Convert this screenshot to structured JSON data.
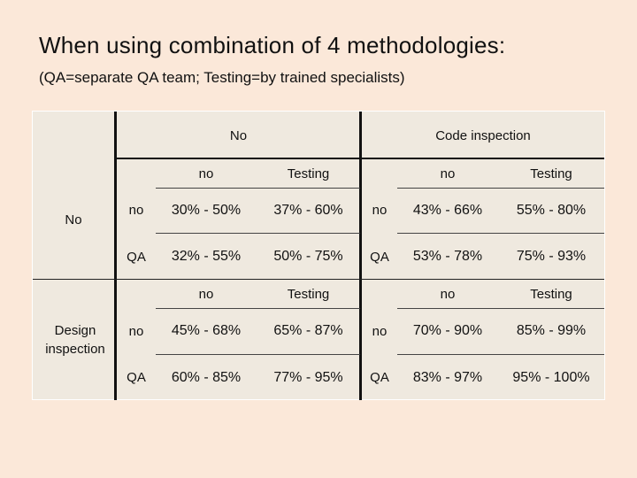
{
  "title": "When using combination of 4 methodologies:",
  "subtitle": "(QA=separate QA team;  Testing=by trained specialists)",
  "table": {
    "col_groups": [
      "No",
      "Code inspection"
    ],
    "row_groups": [
      "No",
      "Design inspection"
    ],
    "sub_col_labels": [
      "no",
      "Testing",
      "no",
      "Testing"
    ],
    "blocks": [
      {
        "sub_col_labels": [
          "no",
          "Testing",
          "no",
          "Testing"
        ],
        "rows": [
          {
            "qa_left": "no",
            "cells": [
              "30% - 50%",
              "37% - 60%"
            ],
            "qa_right": "no",
            "cells2": [
              "43% - 66%",
              "55% - 80%"
            ]
          },
          {
            "qa_left": "QA",
            "cells": [
              "32% - 55%",
              "50% - 75%"
            ],
            "qa_right": "QA",
            "cells2": [
              "53% - 78%",
              "75% - 93%"
            ]
          }
        ]
      },
      {
        "sub_col_labels": [
          "no",
          "Testing",
          "no",
          "Testing"
        ],
        "rows": [
          {
            "qa_left": "no",
            "cells": [
              "45% - 68%",
              "65% - 87%"
            ],
            "qa_right": "no",
            "cells2": [
              "70% - 90%",
              "85% - 99%"
            ]
          },
          {
            "qa_left": "QA",
            "cells": [
              "60% - 85%",
              "77% - 95%"
            ],
            "qa_right": "QA",
            "cells2": [
              "83% - 97%",
              "95% - 100%"
            ]
          }
        ]
      }
    ]
  }
}
